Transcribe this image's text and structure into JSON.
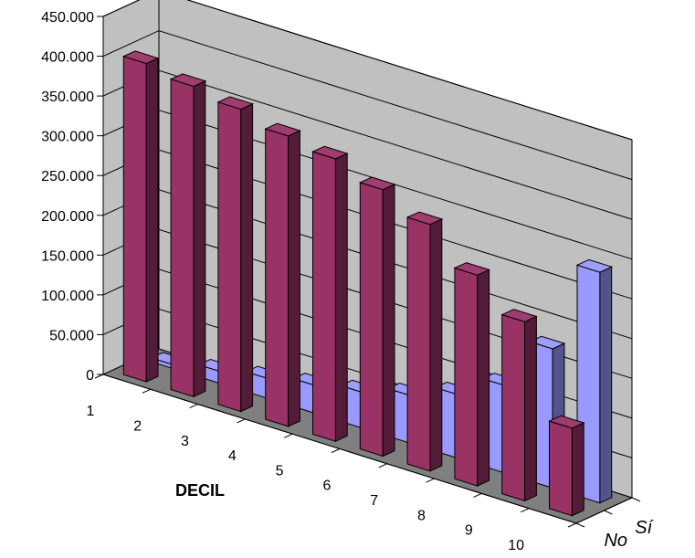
{
  "chart_data": {
    "type": "bar",
    "subtype": "3d-column",
    "title": "",
    "xlabel": "DECIL",
    "ylabel": "",
    "ylim": [
      0,
      450000
    ],
    "y_ticks": [
      "0",
      "50.000",
      "100.000",
      "150.000",
      "200.000",
      "250.000",
      "300.000",
      "350.000",
      "400.000",
      "450.000"
    ],
    "categories": [
      "1",
      "2",
      "3",
      "4",
      "5",
      "6",
      "7",
      "8",
      "9",
      "10"
    ],
    "series": [
      {
        "name": "No",
        "color": "#993366",
        "values": [
          400000,
          390000,
          380000,
          365000,
          355000,
          335000,
          310000,
          265000,
          225000,
          110000
        ]
      },
      {
        "name": "Sí",
        "color": "#9999ff",
        "values": [
          5000,
          15000,
          25000,
          35000,
          45000,
          60000,
          80000,
          110000,
          175000,
          290000
        ]
      }
    ],
    "grid": true,
    "colors": {
      "wall": "#c0c0c0",
      "floor": "#808080",
      "grid": "#000000"
    }
  }
}
